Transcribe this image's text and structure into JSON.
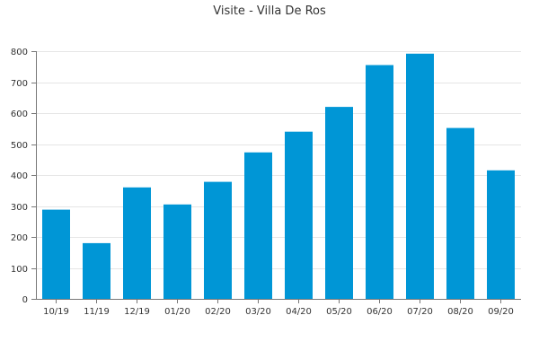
{
  "chart_data": {
    "type": "bar",
    "title": "Visite - Villa De Ros",
    "categories": [
      "10/19",
      "11/19",
      "12/19",
      "01/20",
      "02/20",
      "03/20",
      "04/20",
      "05/20",
      "06/20",
      "07/20",
      "08/20",
      "09/20"
    ],
    "values": [
      288,
      180,
      360,
      305,
      378,
      473,
      540,
      620,
      755,
      792,
      552,
      415
    ],
    "ylim": [
      0,
      800
    ],
    "yticks": [
      0,
      100,
      200,
      300,
      400,
      500,
      600,
      700,
      800
    ],
    "grid": true,
    "xlabel": "",
    "ylabel": "",
    "colors": {
      "bar": "#0096d6"
    }
  }
}
